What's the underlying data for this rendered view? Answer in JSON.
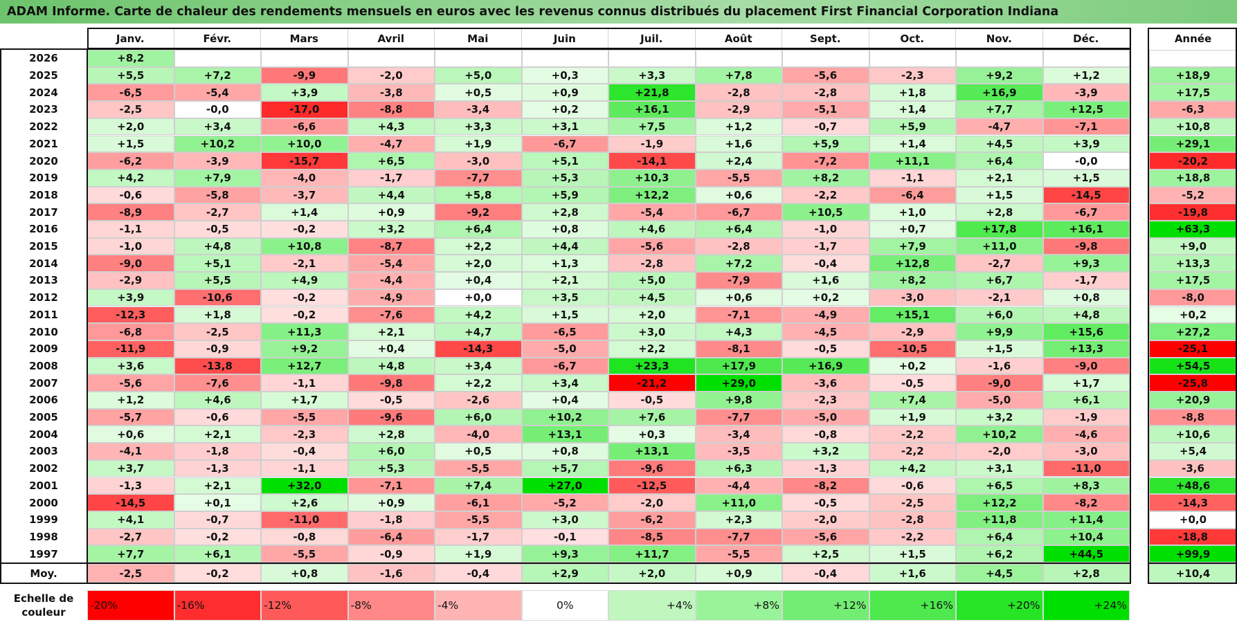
{
  "title": "ADAM Informe. Carte de chaleur des rendements mensuels en euros avec les revenus connus distribués du placement First Financial Corporation Indiana",
  "chart_data": {
    "type": "heatmap",
    "months": [
      "Janv.",
      "Févr.",
      "Mars",
      "Avril",
      "Mai",
      "Juin",
      "Juil.",
      "Août",
      "Sept.",
      "Oct.",
      "Nov.",
      "Déc."
    ],
    "year_header": "Année",
    "rows": [
      {
        "year": "2026",
        "values": [
          "+8,2",
          "",
          "",
          "",
          "",
          "",
          "",
          "",
          "",
          "",
          "",
          ""
        ],
        "annual": ""
      },
      {
        "year": "2025",
        "values": [
          "+5,5",
          "+7,2",
          "-9,9",
          "-2,0",
          "+5,0",
          "+0,3",
          "+3,3",
          "+7,8",
          "-5,6",
          "-2,3",
          "+9,2",
          "+1,2"
        ],
        "annual": "+18,9"
      },
      {
        "year": "2024",
        "values": [
          "-6,5",
          "-5,4",
          "+3,9",
          "-3,8",
          "+0,5",
          "+0,9",
          "+21,8",
          "-2,8",
          "-2,8",
          "+1,8",
          "+16,9",
          "-3,9"
        ],
        "annual": "+17,5"
      },
      {
        "year": "2023",
        "values": [
          "-2,5",
          "-0,0",
          "-17,0",
          "-8,8",
          "-3,4",
          "+0,2",
          "+16,1",
          "-2,9",
          "-5,1",
          "+1,4",
          "+7,7",
          "+12,5"
        ],
        "annual": "-6,3"
      },
      {
        "year": "2022",
        "values": [
          "+2,0",
          "+3,4",
          "-6,6",
          "+4,3",
          "+3,3",
          "+3,1",
          "+7,5",
          "+1,2",
          "-0,7",
          "+5,9",
          "-4,7",
          "-7,1"
        ],
        "annual": "+10,8"
      },
      {
        "year": "2021",
        "values": [
          "+1,5",
          "+10,2",
          "+10,0",
          "-4,7",
          "+1,9",
          "-6,7",
          "-1,9",
          "+1,6",
          "+5,9",
          "+1,4",
          "+4,5",
          "+3,9"
        ],
        "annual": "+29,1"
      },
      {
        "year": "2020",
        "values": [
          "-6,2",
          "-3,9",
          "-15,7",
          "+6,5",
          "-3,0",
          "+5,1",
          "-14,1",
          "+2,4",
          "-7,2",
          "+11,1",
          "+6,4",
          "-0,0"
        ],
        "annual": "-20,2"
      },
      {
        "year": "2019",
        "values": [
          "+4,2",
          "+7,9",
          "-4,0",
          "-1,7",
          "-7,7",
          "+5,3",
          "+10,3",
          "-5,5",
          "+8,2",
          "-1,1",
          "+2,1",
          "+1,5"
        ],
        "annual": "+18,8"
      },
      {
        "year": "2018",
        "values": [
          "-0,6",
          "-5,8",
          "-3,7",
          "+4,4",
          "+5,8",
          "+5,9",
          "+12,2",
          "+0,6",
          "-2,2",
          "-6,4",
          "+1,5",
          "-14,5"
        ],
        "annual": "-5,2"
      },
      {
        "year": "2017",
        "values": [
          "-8,9",
          "-2,7",
          "+1,4",
          "+0,9",
          "-9,2",
          "+2,8",
          "-5,4",
          "-6,7",
          "+10,5",
          "+1,0",
          "+2,8",
          "-6,7"
        ],
        "annual": "-19,8"
      },
      {
        "year": "2016",
        "values": [
          "-1,1",
          "-0,5",
          "-0,2",
          "+3,2",
          "+6,4",
          "+0,8",
          "+4,6",
          "+6,4",
          "-1,0",
          "+0,7",
          "+17,8",
          "+16,1"
        ],
        "annual": "+63,3"
      },
      {
        "year": "2015",
        "values": [
          "-1,0",
          "+4,8",
          "+10,8",
          "-8,7",
          "+2,2",
          "+4,4",
          "-5,6",
          "-2,8",
          "-1,7",
          "+7,9",
          "+11,0",
          "-9,8"
        ],
        "annual": "+9,0"
      },
      {
        "year": "2014",
        "values": [
          "-9,0",
          "+5,1",
          "-2,1",
          "-5,4",
          "+2,0",
          "+1,3",
          "-2,8",
          "+7,2",
          "-0,4",
          "+12,8",
          "-2,7",
          "+9,3"
        ],
        "annual": "+13,3"
      },
      {
        "year": "2013",
        "values": [
          "-2,9",
          "+5,5",
          "+4,9",
          "-4,4",
          "+0,4",
          "+2,1",
          "+5,0",
          "-7,9",
          "+1,6",
          "+8,2",
          "+6,7",
          "-1,7"
        ],
        "annual": "+17,5"
      },
      {
        "year": "2012",
        "values": [
          "+3,9",
          "-10,6",
          "-0,2",
          "-4,9",
          "+0,0",
          "+3,5",
          "+4,5",
          "+0,6",
          "+0,2",
          "-3,0",
          "-2,1",
          "+0,8"
        ],
        "annual": "-8,0"
      },
      {
        "year": "2011",
        "values": [
          "-12,3",
          "+1,8",
          "-0,2",
          "-7,6",
          "+4,2",
          "+1,5",
          "+2,0",
          "-7,1",
          "-4,9",
          "+15,1",
          "+6,0",
          "+4,8"
        ],
        "annual": "+0,2"
      },
      {
        "year": "2010",
        "values": [
          "-6,8",
          "-2,5",
          "+11,3",
          "+2,1",
          "+4,7",
          "-6,5",
          "+3,0",
          "+4,3",
          "-4,5",
          "-2,9",
          "+9,9",
          "+15,6"
        ],
        "annual": "+27,2"
      },
      {
        "year": "2009",
        "values": [
          "-11,9",
          "-0,9",
          "+9,2",
          "+0,4",
          "-14,3",
          "-5,0",
          "+2,2",
          "-8,1",
          "-0,5",
          "-10,5",
          "+1,5",
          "+13,3"
        ],
        "annual": "-25,1"
      },
      {
        "year": "2008",
        "values": [
          "+3,6",
          "-13,8",
          "+12,7",
          "+4,8",
          "+3,4",
          "-6,7",
          "+23,3",
          "+17,9",
          "+16,9",
          "+0,2",
          "-1,6",
          "-9,0"
        ],
        "annual": "+54,5"
      },
      {
        "year": "2007",
        "values": [
          "-5,6",
          "-7,6",
          "-1,1",
          "-9,8",
          "+2,2",
          "+3,4",
          "-21,2",
          "+29,0",
          "-3,6",
          "-0,5",
          "-9,0",
          "+1,7"
        ],
        "annual": "-25,8"
      },
      {
        "year": "2006",
        "values": [
          "+1,2",
          "+4,6",
          "+1,7",
          "-0,5",
          "-2,6",
          "+0,4",
          "-0,5",
          "+9,8",
          "-2,3",
          "+7,4",
          "-5,0",
          "+6,1"
        ],
        "annual": "+20,9"
      },
      {
        "year": "2005",
        "values": [
          "-5,7",
          "-0,6",
          "-5,5",
          "-9,6",
          "+6,0",
          "+10,2",
          "+7,6",
          "-7,7",
          "-5,0",
          "+1,9",
          "+3,2",
          "-1,9"
        ],
        "annual": "-8,8"
      },
      {
        "year": "2004",
        "values": [
          "+0,6",
          "+2,1",
          "-2,3",
          "+2,8",
          "-4,0",
          "+13,1",
          "+0,3",
          "-3,4",
          "-0,8",
          "-2,2",
          "+10,2",
          "-4,6"
        ],
        "annual": "+10,6"
      },
      {
        "year": "2003",
        "values": [
          "-4,1",
          "-1,8",
          "-0,4",
          "+6,0",
          "+0,5",
          "+0,8",
          "+13,1",
          "-3,5",
          "+3,2",
          "-2,2",
          "-2,0",
          "-3,0"
        ],
        "annual": "+5,4"
      },
      {
        "year": "2002",
        "values": [
          "+3,7",
          "-1,3",
          "-1,1",
          "+5,3",
          "-5,5",
          "+5,7",
          "-9,6",
          "+6,3",
          "-1,3",
          "+4,2",
          "+3,1",
          "-11,0"
        ],
        "annual": "-3,6"
      },
      {
        "year": "2001",
        "values": [
          "-1,3",
          "+2,1",
          "+32,0",
          "-7,1",
          "+7,4",
          "+27,0",
          "-12,5",
          "-4,4",
          "-8,2",
          "-0,6",
          "+6,5",
          "+8,3"
        ],
        "annual": "+48,6"
      },
      {
        "year": "2000",
        "values": [
          "-14,5",
          "+0,1",
          "+2,6",
          "+0,9",
          "-6,1",
          "-5,2",
          "-2,0",
          "+11,0",
          "-0,5",
          "-2,5",
          "+12,2",
          "-8,2"
        ],
        "annual": "-14,3"
      },
      {
        "year": "1999",
        "values": [
          "+4,1",
          "-0,7",
          "-11,0",
          "-1,8",
          "-5,5",
          "+3,0",
          "-6,2",
          "+2,3",
          "-2,0",
          "-2,8",
          "+11,8",
          "+11,4"
        ],
        "annual": "+0,0"
      },
      {
        "year": "1998",
        "values": [
          "-2,7",
          "-0,2",
          "-0,8",
          "-6,4",
          "-1,7",
          "-0,1",
          "-8,5",
          "-7,7",
          "-5,6",
          "-2,2",
          "+6,4",
          "+10,4"
        ],
        "annual": "-18,8"
      },
      {
        "year": "1997",
        "values": [
          "+7,7",
          "+6,1",
          "-5,5",
          "-0,9",
          "+1,9",
          "+9,3",
          "+11,7",
          "-5,5",
          "+2,5",
          "+1,5",
          "+6,2",
          "+44,5"
        ],
        "annual": "+99,9"
      }
    ],
    "average": {
      "label": "Moy.",
      "values": [
        "-2,5",
        "-0,2",
        "+0,8",
        "-1,6",
        "-0,4",
        "+2,9",
        "+2,0",
        "+0,9",
        "-0,4",
        "+1,6",
        "+4,5",
        "+2,8"
      ],
      "annual": "+10,4"
    },
    "scale": {
      "label": "Echelle de couleur",
      "stops": [
        "-20%",
        "-16%",
        "-12%",
        "-8%",
        "-4%",
        "0%",
        "+4%",
        "+8%",
        "+12%",
        "+16%",
        "+20%",
        "+24%"
      ],
      "stop_values": [
        -20,
        -16,
        -12,
        -8,
        -4,
        0,
        4,
        8,
        12,
        16,
        20,
        24
      ]
    },
    "colors": {
      "negative": "#ff0000",
      "neutral": "#ffffff",
      "positive": "#00e000"
    }
  }
}
